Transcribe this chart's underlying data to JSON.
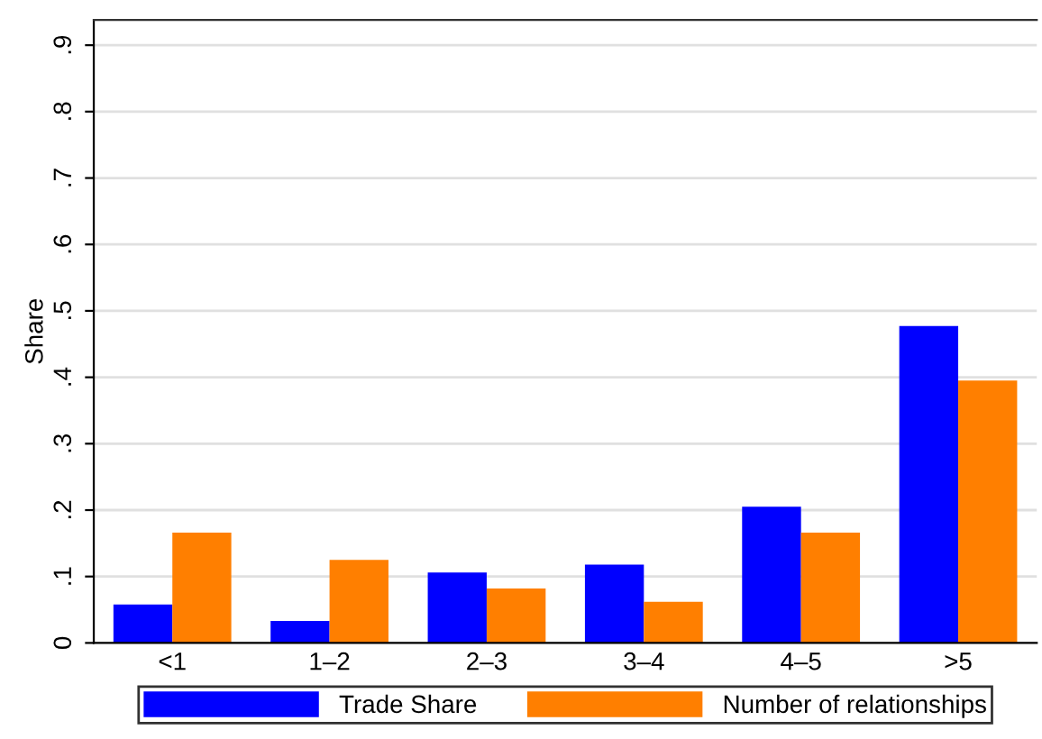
{
  "chart_data": {
    "type": "bar",
    "ylabel": "Share",
    "categories": [
      "<1",
      "1–2",
      "2–3",
      "3–4",
      "4–5",
      ">5"
    ],
    "series": [
      {
        "name": "Trade Share",
        "color": "#0000ff",
        "values": [
          0.058,
          0.033,
          0.106,
          0.118,
          0.205,
          0.477
        ]
      },
      {
        "name": "Number of relationships",
        "color": "#ff7f00",
        "values": [
          0.166,
          0.125,
          0.082,
          0.062,
          0.166,
          0.395
        ]
      }
    ],
    "ylim": [
      0,
      0.938
    ],
    "yticks": [
      {
        "value": 0,
        "label": "0"
      },
      {
        "value": 0.1,
        "label": ".1"
      },
      {
        "value": 0.2,
        "label": ".2"
      },
      {
        "value": 0.3,
        "label": ".3"
      },
      {
        "value": 0.4,
        "label": ".4"
      },
      {
        "value": 0.5,
        "label": ".5"
      },
      {
        "value": 0.6,
        "label": ".6"
      },
      {
        "value": 0.7,
        "label": ".7"
      },
      {
        "value": 0.8,
        "label": ".8"
      },
      {
        "value": 0.9,
        "label": ".9"
      }
    ],
    "grid": "y",
    "legend": "bottom"
  }
}
